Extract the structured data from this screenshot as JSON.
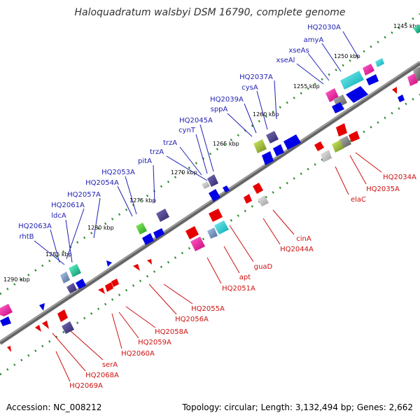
{
  "title": "Haloquadratum walsbyi DSM 16790, complete genome",
  "footer": {
    "accession": "Accession: NC_008212",
    "stats": "Topology: circular; Length: 3,132,494 bp; Genes: 2,662"
  },
  "colors": {
    "backbone": "#666666",
    "tick_dots": "#2e8b2e",
    "top_label": "#1f1fb4",
    "bottom_label": "#cc1111",
    "fwd_arrow": "#0000e6",
    "rev_arrow": "#e60000"
  },
  "ticks": [
    "1245 kbp",
    "1250 kbp",
    "1255 kbp",
    "1260 kbp",
    "1265 kbp",
    "1270 kbp",
    "1275 kbp",
    "1280 kbp",
    "1285 kbp",
    "1290 kbp"
  ],
  "top_labels": [
    "HQ2030A",
    "amyA",
    "xseAs",
    "xseAl",
    "HQ2037A",
    "cysA",
    "HQ2039A",
    "sppA",
    "HQ2045A",
    "cynT",
    "trzA",
    "trzA",
    "pitA",
    "HQ2053A",
    "HQ2054A",
    "HQ2057A",
    "HQ2061A",
    "ldcA",
    "HQ2063A",
    "rhtB"
  ],
  "bottom_labels": [
    "HQ2034A",
    "HQ2035A",
    "elaC",
    "cinA",
    "HQ2044A",
    "guaD",
    "apt",
    "HQ2051A",
    "HQ2055A",
    "HQ2056A",
    "HQ2058A",
    "HQ2059A",
    "HQ2060A",
    "serA",
    "HQ2068A",
    "HQ2069A"
  ]
}
